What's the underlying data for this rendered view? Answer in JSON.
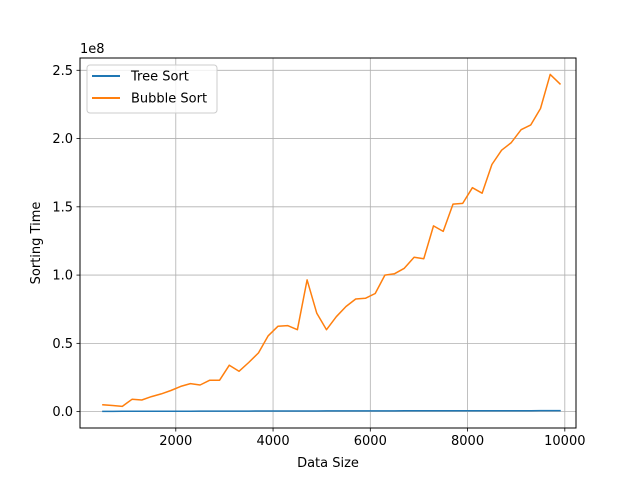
{
  "chart_data": {
    "type": "line",
    "xlabel": "Data Size",
    "ylabel": "Sorting Time",
    "offset_label": "1e8",
    "xlim": [
      30,
      10230
    ],
    "ylim": [
      -12000000,
      259000000
    ],
    "x_ticks": [
      2000,
      4000,
      6000,
      8000,
      10000
    ],
    "x_tick_labels": [
      "2000",
      "4000",
      "6000",
      "8000",
      "10000"
    ],
    "y_ticks": [
      0,
      50000000,
      100000000,
      150000000,
      200000000,
      250000000
    ],
    "y_tick_labels": [
      "0.0",
      "0.5",
      "1.0",
      "1.5",
      "2.0",
      "2.5"
    ],
    "grid": true,
    "legend_position": "top-left",
    "x": [
      500,
      700,
      900,
      1100,
      1300,
      1500,
      1700,
      1900,
      2100,
      2300,
      2500,
      2700,
      2900,
      3100,
      3300,
      3500,
      3700,
      3900,
      4100,
      4300,
      4500,
      4700,
      4900,
      5100,
      5300,
      5500,
      5700,
      5900,
      6100,
      6300,
      6500,
      6700,
      6900,
      7100,
      7300,
      7500,
      7700,
      7900,
      8100,
      8300,
      8500,
      8700,
      8900,
      9100,
      9300,
      9500,
      9700,
      9900
    ],
    "series": [
      {
        "name": "Tree Sort",
        "color": "#1f77b4",
        "values": [
          150000,
          180000,
          200000,
          230000,
          260000,
          280000,
          300000,
          320000,
          330000,
          340000,
          350000,
          360000,
          380000,
          390000,
          400000,
          410000,
          420000,
          430000,
          440000,
          450000,
          460000,
          470000,
          480000,
          490000,
          500000,
          510000,
          520000,
          530000,
          540000,
          550000,
          560000,
          570000,
          580000,
          590000,
          600000,
          610000,
          620000,
          630000,
          640000,
          650000,
          660000,
          670000,
          680000,
          690000,
          700000,
          710000,
          720000,
          730000
        ]
      },
      {
        "name": "Bubble Sort",
        "color": "#ff7f0e",
        "values": [
          5000000,
          4500000,
          3800000,
          9000000,
          8500000,
          11000000,
          13000000,
          15500000,
          18500000,
          20500000,
          19500000,
          23000000,
          23000000,
          34000000,
          29500000,
          36000000,
          43000000,
          55500000,
          62500000,
          63000000,
          60000000,
          96500000,
          72000000,
          60000000,
          69500000,
          77000000,
          82500000,
          83000000,
          86500000,
          100000000,
          101000000,
          105000000,
          113000000,
          112000000,
          136000000,
          132000000,
          152000000,
          152500000,
          164000000,
          160000000,
          181000000,
          191500000,
          197000000,
          206500000,
          210000000,
          222000000,
          247000000,
          240000000
        ]
      }
    ]
  }
}
